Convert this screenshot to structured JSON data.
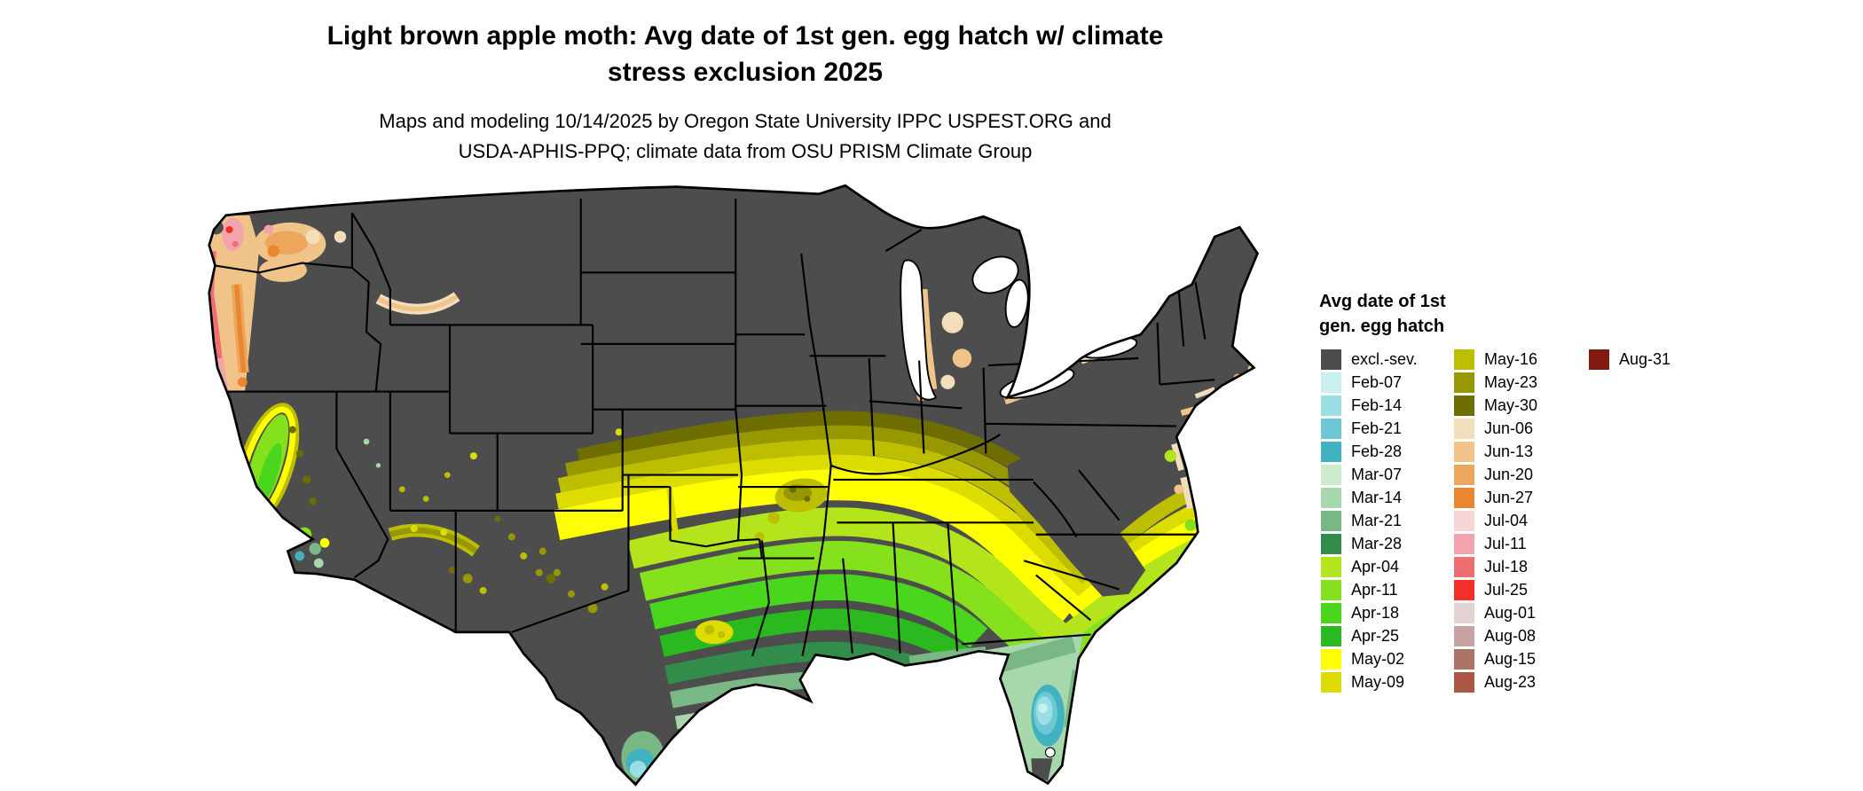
{
  "title": {
    "lines": [
      "Light brown apple moth: Avg date of 1st gen. egg hatch w/ climate",
      "stress exclusion 2025"
    ]
  },
  "subtitle": {
    "lines": [
      "Maps and modeling 10/14/2025 by Oregon State University IPPC USPEST.ORG and",
      "USDA-APHIS-PPQ; climate data from OSU PRISM Climate Group"
    ]
  },
  "map": {
    "region": "Continental United States",
    "excluded_color": "#4d4d4d"
  },
  "legend": {
    "title_lines": [
      "Avg date of 1st",
      "gen. egg hatch"
    ],
    "columns": [
      [
        {
          "label": "excl.-sev.",
          "color": "#4d4d4d"
        },
        {
          "label": "Feb-07",
          "color": "#c9eff1"
        },
        {
          "label": "Feb-14",
          "color": "#99dfe3"
        },
        {
          "label": "Feb-21",
          "color": "#6cc9d3"
        },
        {
          "label": "Feb-28",
          "color": "#41b2c0"
        },
        {
          "label": "Mar-07",
          "color": "#cdeccb"
        },
        {
          "label": "Mar-14",
          "color": "#a7d8ab"
        },
        {
          "label": "Mar-21",
          "color": "#79b785"
        },
        {
          "label": "Mar-28",
          "color": "#338d4a"
        },
        {
          "label": "Apr-04",
          "color": "#b4e51c"
        },
        {
          "label": "Apr-11",
          "color": "#85e01e"
        },
        {
          "label": "Apr-18",
          "color": "#4bd61e"
        },
        {
          "label": "Apr-25",
          "color": "#2ab91e"
        },
        {
          "label": "May-02",
          "color": "#ffff00"
        },
        {
          "label": "May-09",
          "color": "#dcdc00"
        }
      ],
      [
        {
          "label": "May-16",
          "color": "#bebe00"
        },
        {
          "label": "May-23",
          "color": "#979700"
        },
        {
          "label": "May-30",
          "color": "#6d6d00"
        },
        {
          "label": "Jun-06",
          "color": "#f3debc"
        },
        {
          "label": "Jun-13",
          "color": "#f0c489"
        },
        {
          "label": "Jun-20",
          "color": "#eda75c"
        },
        {
          "label": "Jun-27",
          "color": "#e8872f"
        },
        {
          "label": "Jul-04",
          "color": "#f7d5d5"
        },
        {
          "label": "Jul-11",
          "color": "#f2a3ab"
        },
        {
          "label": "Jul-18",
          "color": "#ee6f72"
        },
        {
          "label": "Jul-25",
          "color": "#f42e28"
        },
        {
          "label": "Aug-01",
          "color": "#e3d3d3"
        },
        {
          "label": "Aug-08",
          "color": "#c6a3a0"
        },
        {
          "label": "Aug-15",
          "color": "#ac7468"
        },
        {
          "label": "Aug-23",
          "color": "#aa5743"
        }
      ],
      [
        {
          "label": "Aug-31",
          "color": "#7f1b10"
        }
      ]
    ]
  }
}
